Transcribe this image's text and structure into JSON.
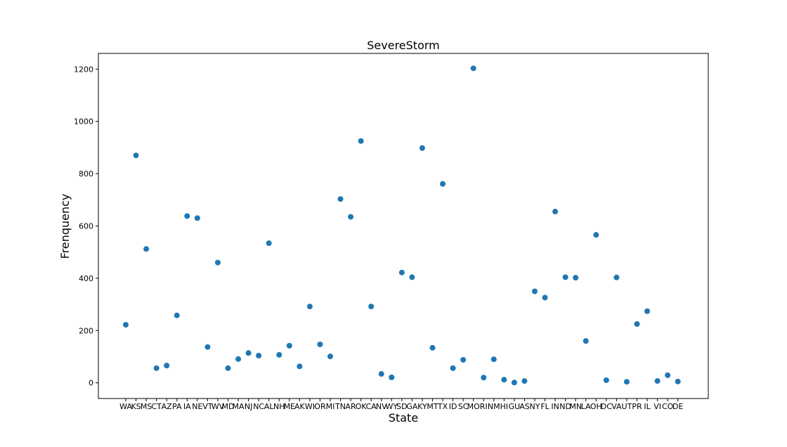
{
  "chart_data": {
    "type": "scatter",
    "title": "SevereStorm",
    "xlabel": "State",
    "ylabel": "Frenquency",
    "marker_color": "#1f77b4",
    "ylim": [
      -60,
      1260
    ],
    "yticks": [
      0,
      200,
      400,
      600,
      800,
      1000,
      1200
    ],
    "grid": false,
    "legend": "none",
    "categories": [
      "WA",
      "KS",
      "MS",
      "CT",
      "AZ",
      "PA",
      "IA",
      "NE",
      "VT",
      "WV",
      "MD",
      "MA",
      "NJ",
      "NC",
      "AL",
      "NH",
      "ME",
      "AK",
      "WI",
      "OR",
      "MI",
      "TN",
      "AR",
      "OK",
      "CA",
      "NV",
      "WY",
      "SD",
      "GA",
      "KY",
      "MT",
      "TX",
      "ID",
      "SC",
      "MO",
      "RI",
      "NM",
      "HI",
      "GU",
      "AS",
      "NY",
      "FL",
      "IN",
      "ND",
      "MN",
      "LA",
      "OH",
      "DC",
      "VA",
      "UT",
      "PR",
      "IL",
      "VI",
      "CO",
      "DE"
    ],
    "values": [
      222,
      870,
      512,
      56,
      66,
      258,
      638,
      630,
      137,
      460,
      56,
      91,
      114,
      104,
      534,
      107,
      142,
      63,
      292,
      147,
      101,
      703,
      635,
      925,
      292,
      34,
      21,
      422,
      404,
      898,
      134,
      761,
      56,
      88,
      1203,
      20,
      90,
      12,
      1,
      7,
      350,
      326,
      655,
      404,
      402,
      160,
      566,
      10,
      403,
      4,
      225,
      274,
      7,
      29,
      5
    ]
  }
}
